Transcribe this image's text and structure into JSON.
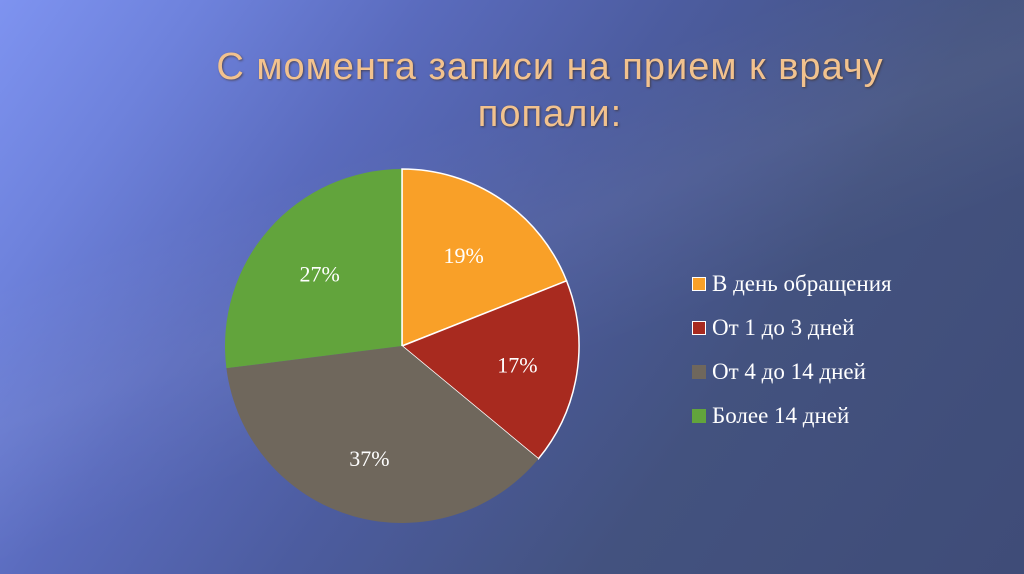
{
  "title": {
    "line1": "С момента записи на прием к врачу",
    "line2": "попали:"
  },
  "chart_data": {
    "type": "pie",
    "title": "С момента записи на прием к врачу попали:",
    "categories": [
      "В день обращения",
      "От 1 до 3 дней",
      "От 4 до 14 дней",
      "Более 14 дней"
    ],
    "values": [
      19,
      17,
      37,
      27
    ],
    "labels": [
      "19%",
      "17%",
      "37%",
      "27%"
    ],
    "colors": [
      "#f9a028",
      "#a82a1f",
      "#6f675c",
      "#62a43c"
    ],
    "start_angle": "12 o'clock, clockwise",
    "legend_position": "right"
  },
  "legend": {
    "items": [
      {
        "label": "В день обращения",
        "color": "#f9a028"
      },
      {
        "label": "От 1 до 3 дней",
        "color": "#a82a1f"
      },
      {
        "label": "От 4 до 14 дней",
        "color": "#6f675c"
      },
      {
        "label": "Более 14 дней",
        "color": "#62a43c"
      }
    ]
  }
}
